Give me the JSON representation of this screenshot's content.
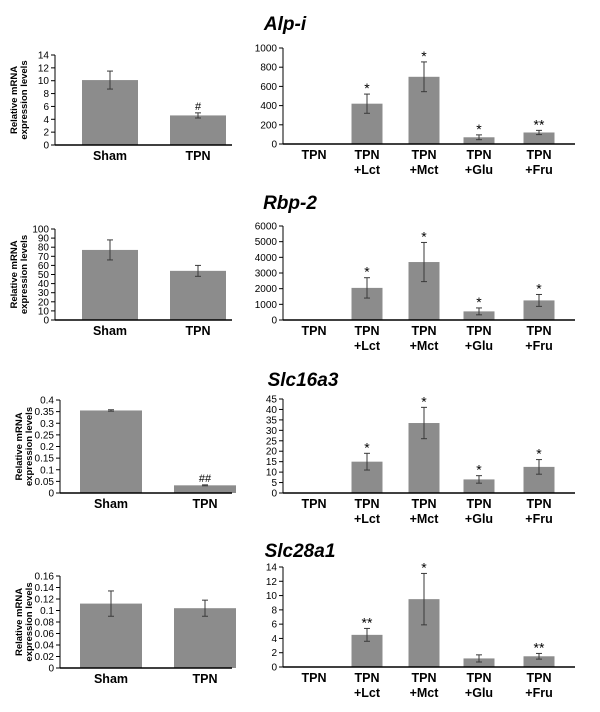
{
  "chart_data": [
    {
      "gene": "Alp-i",
      "panels": [
        {
          "type": "bar",
          "ylabel": "Relative mRNA expression levels",
          "categories": [
            "Sham",
            "TPN"
          ],
          "values": [
            10.1,
            4.6
          ],
          "errors": [
            1.4,
            0.4
          ],
          "annotations": [
            "",
            "#"
          ],
          "ylim": [
            0,
            14
          ],
          "ticks": [
            0,
            2,
            4,
            6,
            8,
            10,
            12,
            14
          ]
        },
        {
          "type": "bar",
          "ylabel": "",
          "categories": [
            [
              "TPN"
            ],
            [
              "TPN",
              "+Lct"
            ],
            [
              "TPN",
              "+Mct"
            ],
            [
              "TPN",
              "+Glu"
            ],
            [
              "TPN",
              "+Fru"
            ]
          ],
          "values": [
            1,
            420,
            700,
            70,
            120
          ],
          "errors": [
            0,
            100,
            155,
            25,
            22
          ],
          "annotations": [
            "",
            "*",
            "*",
            "*",
            "**"
          ],
          "ylim": [
            0,
            1000
          ],
          "ticks": [
            0,
            200,
            400,
            600,
            800,
            1000
          ]
        }
      ]
    },
    {
      "gene": "Rbp-2",
      "panels": [
        {
          "type": "bar",
          "ylabel": "Relative mRNA expression levels",
          "categories": [
            "Sham",
            "TPN"
          ],
          "values": [
            77,
            54
          ],
          "errors": [
            11,
            6
          ],
          "annotations": [
            "",
            ""
          ],
          "ylim": [
            0,
            100
          ],
          "ticks": [
            0,
            10,
            20,
            30,
            40,
            50,
            60,
            70,
            80,
            90,
            100
          ]
        },
        {
          "type": "bar",
          "ylabel": "",
          "categories": [
            [
              "TPN"
            ],
            [
              "TPN",
              "+Lct"
            ],
            [
              "TPN",
              "+Mct"
            ],
            [
              "TPN",
              "+Glu"
            ],
            [
              "TPN",
              "+Fru"
            ]
          ],
          "values": [
            20,
            2050,
            3700,
            550,
            1250
          ],
          "errors": [
            0,
            650,
            1250,
            220,
            380
          ],
          "annotations": [
            "",
            "*",
            "*",
            "*",
            "*"
          ],
          "ylim": [
            0,
            6000
          ],
          "ticks": [
            0,
            1000,
            2000,
            3000,
            4000,
            5000,
            6000
          ]
        }
      ]
    },
    {
      "gene": "Slc16a3",
      "panels": [
        {
          "type": "bar",
          "ylabel": "Relative mRNA expression levels",
          "categories": [
            "Sham",
            "TPN"
          ],
          "values": [
            0.355,
            0.033
          ],
          "errors": [
            0.003,
            0.002
          ],
          "annotations": [
            "",
            "##"
          ],
          "ylim": [
            0,
            0.4
          ],
          "ticks": [
            0,
            0.05,
            0.1,
            0.15,
            0.2,
            0.25,
            0.3,
            0.35,
            0.4
          ]
        },
        {
          "type": "bar",
          "ylabel": "",
          "categories": [
            [
              "TPN"
            ],
            [
              "TPN",
              "+Lct"
            ],
            [
              "TPN",
              "+Mct"
            ],
            [
              "TPN",
              "+Glu"
            ],
            [
              "TPN",
              "+Fru"
            ]
          ],
          "values": [
            0.1,
            15,
            33.5,
            6.5,
            12.5
          ],
          "errors": [
            0,
            4,
            7.5,
            1.8,
            3.5
          ],
          "annotations": [
            "",
            "*",
            "*",
            "*",
            "*"
          ],
          "ylim": [
            0,
            45
          ],
          "ticks": [
            0,
            5,
            10,
            15,
            20,
            25,
            30,
            35,
            40,
            45
          ]
        }
      ]
    },
    {
      "gene": "Slc28a1",
      "panels": [
        {
          "type": "bar",
          "ylabel": "Relative mRNA expression levels",
          "categories": [
            "Sham",
            "TPN"
          ],
          "values": [
            0.112,
            0.104
          ],
          "errors": [
            0.022,
            0.014
          ],
          "annotations": [
            "",
            ""
          ],
          "ylim": [
            0,
            0.16
          ],
          "ticks": [
            0,
            0.02,
            0.04,
            0.06,
            0.08,
            0.1,
            0.12,
            0.14,
            0.16
          ]
        },
        {
          "type": "bar",
          "ylabel": "",
          "categories": [
            [
              "TPN"
            ],
            [
              "TPN",
              "+Lct"
            ],
            [
              "TPN",
              "+Mct"
            ],
            [
              "TPN",
              "+Glu"
            ],
            [
              "TPN",
              "+Fru"
            ]
          ],
          "values": [
            0.05,
            4.5,
            9.5,
            1.2,
            1.5
          ],
          "errors": [
            0,
            0.9,
            3.6,
            0.5,
            0.4
          ],
          "annotations": [
            "",
            "**",
            "*",
            "",
            "**"
          ],
          "ylim": [
            0,
            14
          ],
          "ticks": [
            0,
            2,
            4,
            6,
            8,
            10,
            12,
            14
          ]
        }
      ]
    }
  ]
}
